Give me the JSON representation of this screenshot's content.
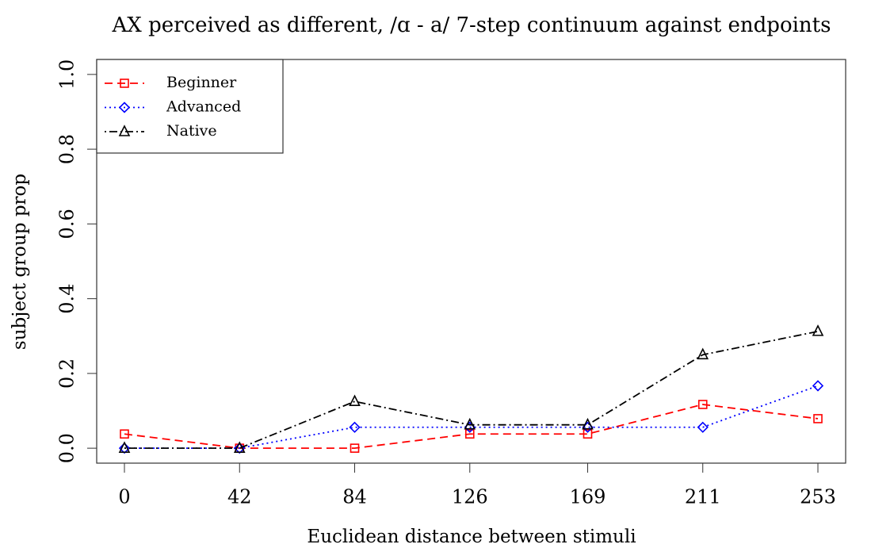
{
  "chart_data": {
    "type": "line",
    "title": "AX perceived as different, /ɑ - a/ 7-step continuum against endpoints",
    "x_label": "Euclidean distance between stimuli",
    "y_label": "subject group prop",
    "x": [
      0,
      42,
      84,
      126,
      169,
      211,
      253
    ],
    "series": [
      {
        "name": "Beginner",
        "color": "#ff0000",
        "marker": "square",
        "line_style": "dashed",
        "values": [
          0.038,
          0,
          0,
          0.038,
          0.038,
          0.117,
          0.079
        ]
      },
      {
        "name": "Advanced",
        "color": "#0000ff",
        "marker": "diamond",
        "line_style": "dotted",
        "values": [
          0,
          0,
          0.056,
          0.056,
          0.056,
          0.056,
          0.167
        ]
      },
      {
        "name": "Native",
        "color": "#000000",
        "marker": "triangle",
        "line_style": "dotdash",
        "values": [
          0,
          0,
          0.125,
          0.0625,
          0.0625,
          0.25,
          0.3125
        ]
      }
    ],
    "xlim": [
      -10.12,
      263.12
    ],
    "xticks": [
      0,
      42,
      84,
      126,
      169,
      211,
      253
    ],
    "ylim": [
      -0.04,
      1.04
    ],
    "yticks": [
      {
        "value": 0,
        "label": "0.0"
      },
      0.2,
      0.4,
      0.6,
      0.8,
      {
        "value": 1,
        "label": "1.0"
      }
    ],
    "legend": "top-left"
  }
}
